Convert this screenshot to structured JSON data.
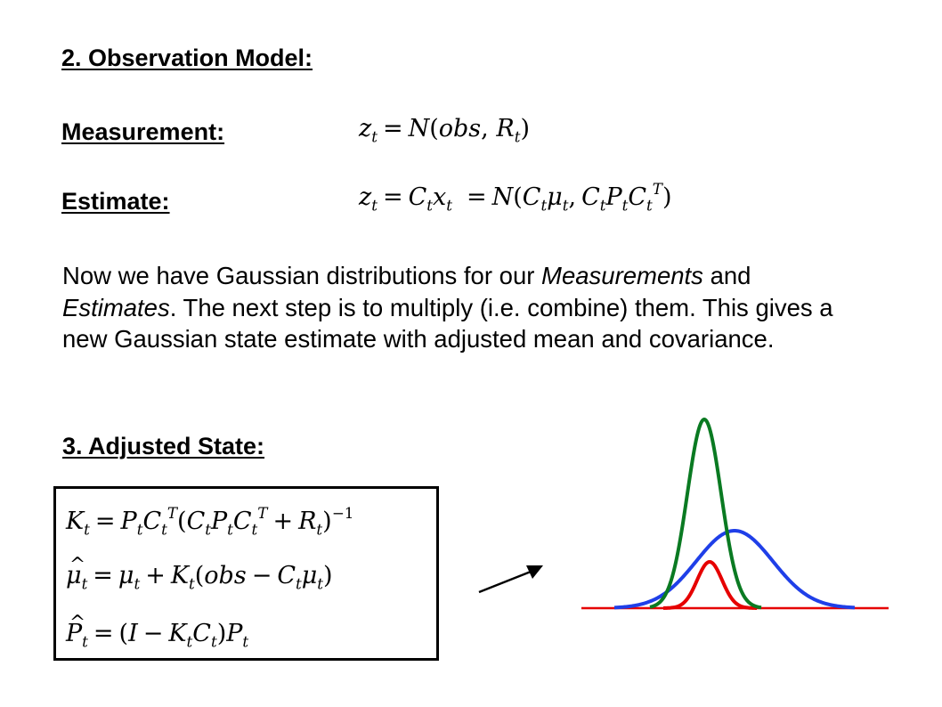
{
  "section2": {
    "heading": "2. Observation Model:",
    "measurement_label": "Measurement:",
    "estimate_label": "Estimate:"
  },
  "paragraph": {
    "before_measurements": "Now we have Gaussian distributions for our ",
    "measurements": "Measurements",
    "and": " and ",
    "estimates": "Estimates",
    "rest": ". The next step is to multiply (i.e. combine) them. This gives a new Gaussian state estimate with adjusted mean and covariance."
  },
  "section3": {
    "heading": "3. Adjusted State:"
  },
  "colors": {
    "prior_curve": "#1f3fe8",
    "measurement_curve": "#e60000",
    "posterior_curve": "#0a7a22",
    "baseline": "#e60000"
  },
  "illustration": {
    "arrow_icon": "arrow-up-right",
    "curves": [
      "prior-gaussian-blue",
      "measurement-gaussian-red",
      "posterior-gaussian-green"
    ]
  }
}
